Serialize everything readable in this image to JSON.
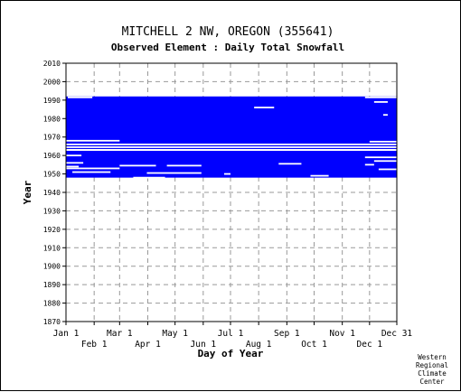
{
  "chart_data": {
    "type": "heatmap",
    "title": "MITCHELL 2 NW, OREGON   (355641)",
    "subtitle": "Observed Element : Daily Total Snowfall",
    "xlabel": "Day of Year",
    "ylabel": "Year",
    "credit": [
      "Western",
      "Regional",
      "Climate",
      "Center"
    ],
    "x_range": [
      1,
      365
    ],
    "y_range": [
      1870,
      2010
    ],
    "y_ticks": [
      1870,
      1880,
      1890,
      1900,
      1910,
      1920,
      1930,
      1940,
      1950,
      1960,
      1970,
      1980,
      1990,
      2000,
      2010
    ],
    "x_ticks_upper": [
      {
        "label": "Jan 1",
        "day": 1
      },
      {
        "label": "Mar 1",
        "day": 60
      },
      {
        "label": "May 1",
        "day": 121
      },
      {
        "label": "Jul 1",
        "day": 182
      },
      {
        "label": "Sep 1",
        "day": 244
      },
      {
        "label": "Nov 1",
        "day": 305
      },
      {
        "label": "Dec 31",
        "day": 365
      }
    ],
    "x_ticks_lower": [
      {
        "label": "Feb 1",
        "day": 32
      },
      {
        "label": "Apr 1",
        "day": 91
      },
      {
        "label": "Jun 1",
        "day": 152
      },
      {
        "label": "Aug 1",
        "day": 213
      },
      {
        "label": "Oct 1",
        "day": 274
      },
      {
        "label": "Dec 1",
        "day": 335
      }
    ],
    "grid": true,
    "data_color": "#0000ff",
    "record_period": [
      1948,
      1992
    ],
    "missing_year_bands": [
      {
        "from_day": 1,
        "to_day": 365,
        "year": 1963
      }
    ],
    "missing_segments": [
      {
        "year": 1991.5,
        "from_day": 3,
        "to_day": 30
      },
      {
        "year": 1991.5,
        "from_day": 330,
        "to_day": 365
      },
      {
        "year": 1989,
        "from_day": 340,
        "to_day": 355
      },
      {
        "year": 1986,
        "from_day": 208,
        "to_day": 230
      },
      {
        "year": 1982,
        "from_day": 350,
        "to_day": 355
      },
      {
        "year": 1968,
        "from_day": 1,
        "to_day": 60
      },
      {
        "year": 1967.5,
        "from_day": 335,
        "to_day": 365
      },
      {
        "year": 1966,
        "from_day": 1,
        "to_day": 365
      },
      {
        "year": 1964.5,
        "from_day": 1,
        "to_day": 365
      },
      {
        "year": 1960,
        "from_day": 1,
        "to_day": 18
      },
      {
        "year": 1959,
        "from_day": 330,
        "to_day": 365
      },
      {
        "year": 1957,
        "from_day": 340,
        "to_day": 365
      },
      {
        "year": 1956,
        "from_day": 1,
        "to_day": 20
      },
      {
        "year": 1955.5,
        "from_day": 235,
        "to_day": 260
      },
      {
        "year": 1955,
        "from_day": 330,
        "to_day": 340
      },
      {
        "year": 1954,
        "from_day": 1,
        "to_day": 15
      },
      {
        "year": 1954.5,
        "from_day": 60,
        "to_day": 100
      },
      {
        "year": 1954.5,
        "from_day": 112,
        "to_day": 150
      },
      {
        "year": 1953,
        "from_day": 1,
        "to_day": 60
      },
      {
        "year": 1952.5,
        "from_day": 345,
        "to_day": 365
      },
      {
        "year": 1951,
        "from_day": 8,
        "to_day": 50
      },
      {
        "year": 1950.5,
        "from_day": 90,
        "to_day": 150
      },
      {
        "year": 1950,
        "from_day": 175,
        "to_day": 182
      },
      {
        "year": 1949,
        "from_day": 270,
        "to_day": 290
      },
      {
        "year": 1948,
        "from_day": 75,
        "to_day": 110
      }
    ]
  }
}
